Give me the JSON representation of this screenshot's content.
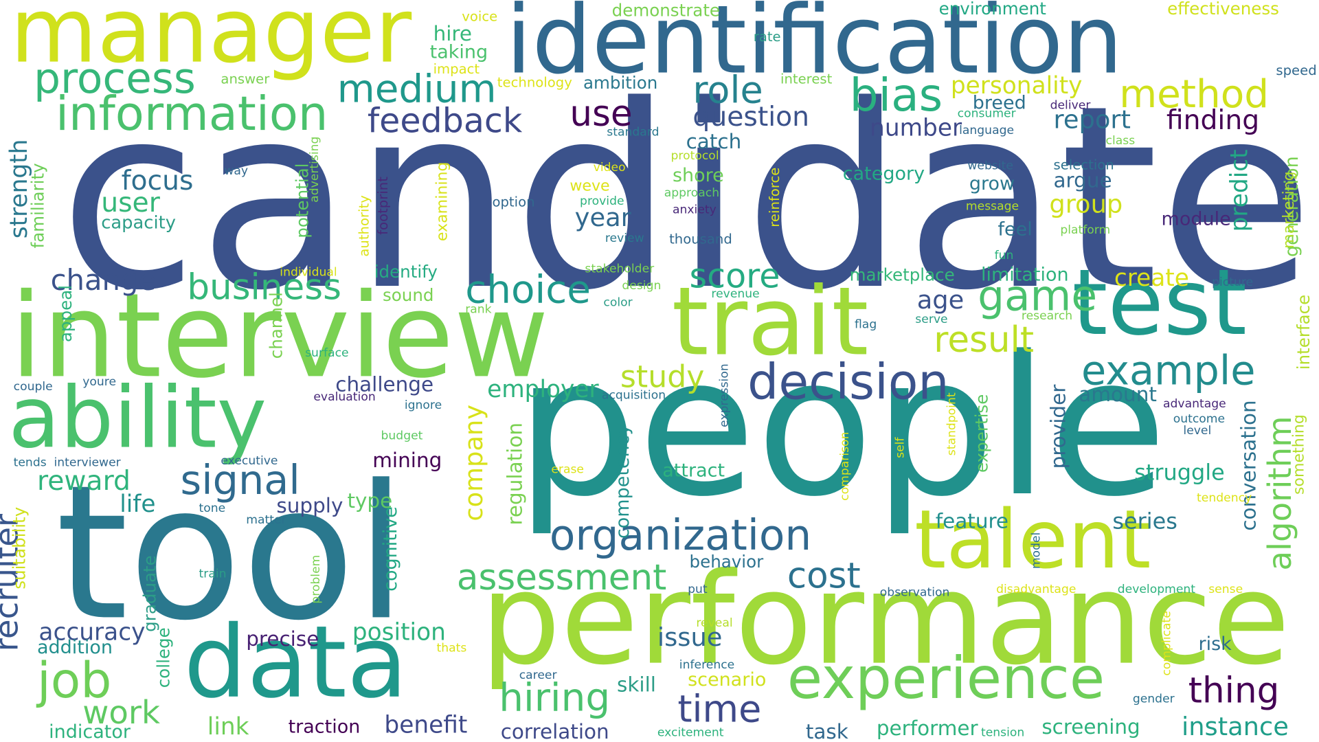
{
  "words": [
    {
      "text": "candidate",
      "color": "#3b528b"
    },
    {
      "text": "people",
      "color": "#21918c"
    },
    {
      "text": "tool",
      "color": "#2a788e"
    },
    {
      "text": "performance",
      "color": "#a0da39"
    },
    {
      "text": "interview",
      "color": "#7ad151"
    },
    {
      "text": "identification",
      "color": "#31688e"
    },
    {
      "text": "manager",
      "color": "#d0e11c"
    },
    {
      "text": "ability",
      "color": "#4ac16d"
    },
    {
      "text": "data",
      "color": "#1f988b"
    },
    {
      "text": "trait",
      "color": "#a0da39"
    },
    {
      "text": "test",
      "color": "#1f988b"
    },
    {
      "text": "talent",
      "color": "#bddf26"
    },
    {
      "text": "experience",
      "color": "#6ece58"
    },
    {
      "text": "decision",
      "color": "#3b528b"
    },
    {
      "text": "organization",
      "color": "#31688e"
    },
    {
      "text": "information",
      "color": "#4ac16d"
    },
    {
      "text": "process",
      "color": "#35b779"
    },
    {
      "text": "medium",
      "color": "#1f988b"
    },
    {
      "text": "method",
      "color": "#d0e11c"
    },
    {
      "text": "bias",
      "color": "#2ab07f"
    },
    {
      "text": "role",
      "color": "#26828e"
    },
    {
      "text": "use",
      "color": "#440154"
    },
    {
      "text": "feedback",
      "color": "#3e4989"
    },
    {
      "text": "game",
      "color": "#4ac16d"
    },
    {
      "text": "example",
      "color": "#228c8d"
    },
    {
      "text": "job",
      "color": "#6ece58"
    },
    {
      "text": "hiring",
      "color": "#4ac16d"
    },
    {
      "text": "signal",
      "color": "#306a8e"
    },
    {
      "text": "assessment",
      "color": "#4ac16d"
    },
    {
      "text": "business",
      "color": "#35b779"
    },
    {
      "text": "choice",
      "color": "#1f988b"
    },
    {
      "text": "score",
      "color": "#25ab82"
    },
    {
      "text": "result",
      "color": "#bddf26"
    },
    {
      "text": "time",
      "color": "#3e4989"
    },
    {
      "text": "thing",
      "color": "#440154"
    },
    {
      "text": "cost",
      "color": "#2c718e"
    },
    {
      "text": "work",
      "color": "#5ec962"
    },
    {
      "text": "recruiter",
      "color": "#39568c"
    },
    {
      "text": "algorithm",
      "color": "#6ece58"
    },
    {
      "text": "company",
      "color": "#d8e219"
    },
    {
      "text": "change",
      "color": "#3b528b"
    },
    {
      "text": "focus",
      "color": "#2e6e8e"
    },
    {
      "text": "user",
      "color": "#35b779"
    },
    {
      "text": "capacity",
      "color": "#2c9d87"
    },
    {
      "text": "strength",
      "color": "#2a788e"
    },
    {
      "text": "reward",
      "color": "#2fb47c"
    },
    {
      "text": "life",
      "color": "#21918c"
    },
    {
      "text": "accuracy",
      "color": "#3b528b"
    },
    {
      "text": "addition",
      "color": "#218f8d"
    },
    {
      "text": "indicator",
      "color": "#2db27d"
    },
    {
      "text": "link",
      "color": "#6ece58"
    },
    {
      "text": "traction",
      "color": "#440154"
    },
    {
      "text": "benefit",
      "color": "#3e4989"
    },
    {
      "text": "correlation",
      "color": "#3e4989"
    },
    {
      "text": "precise",
      "color": "#482173"
    },
    {
      "text": "position",
      "color": "#2db27d"
    },
    {
      "text": "issue",
      "color": "#31688e"
    },
    {
      "text": "study",
      "color": "#b5de2b"
    },
    {
      "text": "employer",
      "color": "#2db27d"
    },
    {
      "text": "challenge",
      "color": "#3e4989"
    },
    {
      "text": "mining",
      "color": "#440154"
    },
    {
      "text": "supply",
      "color": "#3e4989"
    },
    {
      "text": "type",
      "color": "#5ec962"
    },
    {
      "text": "question",
      "color": "#3b528b"
    },
    {
      "text": "number",
      "color": "#3e4989"
    },
    {
      "text": "report",
      "color": "#2c718e"
    },
    {
      "text": "finding",
      "color": "#440154"
    },
    {
      "text": "personality",
      "color": "#d0e11c"
    },
    {
      "text": "group",
      "color": "#d0e11c"
    },
    {
      "text": "category",
      "color": "#22a884"
    },
    {
      "text": "argue",
      "color": "#31688e"
    },
    {
      "text": "year",
      "color": "#31688e"
    },
    {
      "text": "age",
      "color": "#3b528b"
    },
    {
      "text": "amount",
      "color": "#2a788e"
    },
    {
      "text": "struggle",
      "color": "#22a884"
    },
    {
      "text": "feature",
      "color": "#218f8d"
    },
    {
      "text": "series",
      "color": "#2a788e"
    },
    {
      "text": "instance",
      "color": "#1f9e89"
    },
    {
      "text": "screening",
      "color": "#2db27d"
    },
    {
      "text": "performer",
      "color": "#2db27d"
    },
    {
      "text": "task",
      "color": "#31688e"
    },
    {
      "text": "skill",
      "color": "#2c9d87"
    },
    {
      "text": "scenario",
      "color": "#d0e11c"
    },
    {
      "text": "create",
      "color": "#dde318"
    },
    {
      "text": "limitation",
      "color": "#2db27d"
    },
    {
      "text": "marketplace",
      "color": "#35b779"
    },
    {
      "text": "module",
      "color": "#482878"
    },
    {
      "text": "feel",
      "color": "#2c718e"
    },
    {
      "text": "grow",
      "color": "#2a788e"
    },
    {
      "text": "breed",
      "color": "#2c718e"
    },
    {
      "text": "catch",
      "color": "#2c718e"
    },
    {
      "text": "shore",
      "color": "#6ece58"
    },
    {
      "text": "hire",
      "color": "#35b779"
    },
    {
      "text": "taking",
      "color": "#4ac16d"
    },
    {
      "text": "ambition",
      "color": "#2a788e"
    },
    {
      "text": "demonstrate",
      "color": "#7ad151"
    },
    {
      "text": "environment",
      "color": "#22a884"
    },
    {
      "text": "effectiveness",
      "color": "#d0e11c"
    },
    {
      "text": "identify",
      "color": "#25ab82"
    },
    {
      "text": "sound",
      "color": "#7ad151"
    },
    {
      "text": "attract",
      "color": "#2db27d"
    },
    {
      "text": "behavior",
      "color": "#2c718e"
    },
    {
      "text": "risk",
      "color": "#2e6e8e"
    },
    {
      "text": "potential",
      "color": "#5ec962"
    },
    {
      "text": "familiarity",
      "color": "#6ece58"
    },
    {
      "text": "channel",
      "color": "#7ad151"
    },
    {
      "text": "appeal",
      "color": "#2db27d"
    },
    {
      "text": "suitability",
      "color": "#d0e11c"
    },
    {
      "text": "graduate",
      "color": "#2c9d87"
    },
    {
      "text": "college",
      "color": "#2db27d"
    },
    {
      "text": "cognitive",
      "color": "#22a884"
    },
    {
      "text": "regulation",
      "color": "#7ad151"
    },
    {
      "text": "competency",
      "color": "#21918c"
    },
    {
      "text": "provider",
      "color": "#31688e"
    },
    {
      "text": "expertise",
      "color": "#5ec962"
    },
    {
      "text": "conversation",
      "color": "#2c718e"
    },
    {
      "text": "predict",
      "color": "#22a884"
    },
    {
      "text": "generation",
      "color": "#7ad151"
    },
    {
      "text": "marketing",
      "color": "#b5de2b"
    },
    {
      "text": "interface",
      "color": "#b5de2b"
    },
    {
      "text": "something",
      "color": "#b5de2b"
    },
    {
      "text": "examining",
      "color": "#d8e219"
    },
    {
      "text": "footprint",
      "color": "#482878"
    },
    {
      "text": "reinforce",
      "color": "#dde318"
    },
    {
      "text": "authority",
      "color": "#dde318"
    },
    {
      "text": "advertising",
      "color": "#7ad151"
    },
    {
      "text": "expression",
      "color": "#31688e"
    },
    {
      "text": "standpoint",
      "color": "#dde318"
    },
    {
      "text": "comparison",
      "color": "#dde318"
    },
    {
      "text": "self",
      "color": "#dde318"
    },
    {
      "text": "model",
      "color": "#2c718e"
    },
    {
      "text": "problem",
      "color": "#7ad151"
    },
    {
      "text": "complicate",
      "color": "#dde318"
    },
    {
      "text": "voice",
      "color": "#d8e219"
    },
    {
      "text": "impact",
      "color": "#dde318"
    },
    {
      "text": "answer",
      "color": "#7ad151"
    },
    {
      "text": "technology",
      "color": "#dde318"
    },
    {
      "text": "rate",
      "color": "#2c9d87"
    },
    {
      "text": "interest",
      "color": "#7ad151"
    },
    {
      "text": "speed",
      "color": "#31688e"
    },
    {
      "text": "consumer",
      "color": "#2db27d"
    },
    {
      "text": "deliver",
      "color": "#482878"
    },
    {
      "text": "standard",
      "color": "#2a788e"
    },
    {
      "text": "language",
      "color": "#31688e"
    },
    {
      "text": "class",
      "color": "#7ad151"
    },
    {
      "text": "protocol",
      "color": "#b5de2b"
    },
    {
      "text": "website",
      "color": "#31688e"
    },
    {
      "text": "selection",
      "color": "#2c718e"
    },
    {
      "text": "video",
      "color": "#dde318"
    },
    {
      "text": "way",
      "color": "#31688e"
    },
    {
      "text": "weve",
      "color": "#dde318"
    },
    {
      "text": "approach",
      "color": "#5ec962"
    },
    {
      "text": "option",
      "color": "#31688e"
    },
    {
      "text": "provide",
      "color": "#2db27d"
    },
    {
      "text": "anxiety",
      "color": "#482878"
    },
    {
      "text": "message",
      "color": "#b5de2b"
    },
    {
      "text": "review",
      "color": "#2a788e"
    },
    {
      "text": "thousand",
      "color": "#31688e"
    },
    {
      "text": "platform",
      "color": "#7ad151"
    },
    {
      "text": "fun",
      "color": "#2db27d"
    },
    {
      "text": "individual",
      "color": "#d8e219"
    },
    {
      "text": "stakeholder",
      "color": "#7ad151"
    },
    {
      "text": "design",
      "color": "#7ad151"
    },
    {
      "text": "color",
      "color": "#2c9d87"
    },
    {
      "text": "revenue",
      "color": "#2db27d"
    },
    {
      "text": "rank",
      "color": "#7ad151"
    },
    {
      "text": "flag",
      "color": "#2c718e"
    },
    {
      "text": "serve",
      "color": "#2c9d87"
    },
    {
      "text": "research",
      "color": "#7ad151"
    },
    {
      "text": "picture",
      "color": "#31688e"
    },
    {
      "text": "surface",
      "color": "#2db27d"
    },
    {
      "text": "couple",
      "color": "#31688e"
    },
    {
      "text": "youre",
      "color": "#31688e"
    },
    {
      "text": "evaluation",
      "color": "#482878"
    },
    {
      "text": "ignore",
      "color": "#2c718e"
    },
    {
      "text": "acquisition",
      "color": "#2c718e"
    },
    {
      "text": "advantage",
      "color": "#482878"
    },
    {
      "text": "outcome",
      "color": "#2c718e"
    },
    {
      "text": "level",
      "color": "#31688e"
    },
    {
      "text": "budget",
      "color": "#5ec962"
    },
    {
      "text": "tends",
      "color": "#2c718e"
    },
    {
      "text": "interviewer",
      "color": "#31688e"
    },
    {
      "text": "executive",
      "color": "#31688e"
    },
    {
      "text": "erase",
      "color": "#dde318"
    },
    {
      "text": "tone",
      "color": "#2c718e"
    },
    {
      "text": "matter",
      "color": "#2c718e"
    },
    {
      "text": "tendency",
      "color": "#dde318"
    },
    {
      "text": "train",
      "color": "#2c9d87"
    },
    {
      "text": "put",
      "color": "#31688e"
    },
    {
      "text": "observation",
      "color": "#31688e"
    },
    {
      "text": "disadvantage",
      "color": "#dde318"
    },
    {
      "text": "development",
      "color": "#2db27d"
    },
    {
      "text": "sense",
      "color": "#dde318"
    },
    {
      "text": "reveal",
      "color": "#b5de2b"
    },
    {
      "text": "inference",
      "color": "#2c718e"
    },
    {
      "text": "thats",
      "color": "#dde318"
    },
    {
      "text": "career",
      "color": "#31688e"
    },
    {
      "text": "gender",
      "color": "#2c718e"
    },
    {
      "text": "excitement",
      "color": "#2db27d"
    },
    {
      "text": "tension",
      "color": "#2db27d"
    }
  ]
}
